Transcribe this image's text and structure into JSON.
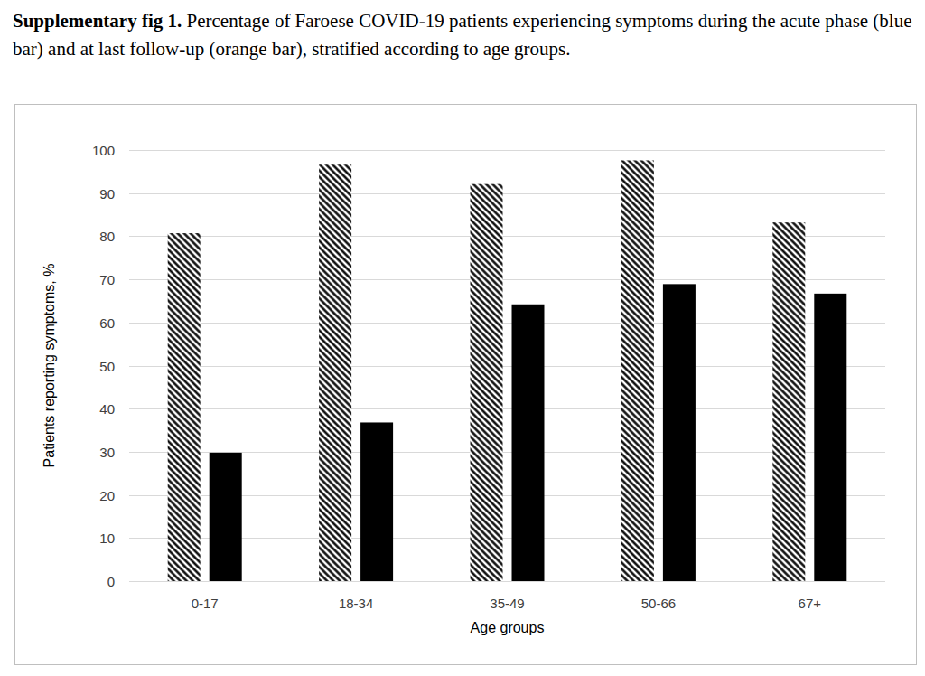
{
  "chart_data": {
    "type": "bar",
    "title": "Supplementary fig 1.",
    "subtitle": "Percentage of Faroese COVID-19 patients experiencing symptoms during the acute phase (blue bar) and at last follow-up (orange bar), stratified according to age groups.",
    "x_label": "Age groups",
    "y_label": "Patients reporting symptoms, %",
    "categories": [
      "0-17",
      "18-34",
      "35-49",
      "50-66",
      "67+"
    ],
    "series": [
      {
        "color": "#000000",
        "line_style": "hatched",
        "values": [
          80.7,
          96.6,
          92.1,
          97.6,
          83.2
        ]
      },
      {
        "color": "#000000",
        "line_style": "solid",
        "values": [
          29.8,
          36.8,
          64.2,
          68.9,
          66.7
        ]
      }
    ],
    "ylim": [
      0,
      100
    ],
    "yticks": [
      0,
      10,
      20,
      30,
      40,
      50,
      60,
      70,
      80,
      90,
      100
    ],
    "grid": true
  }
}
